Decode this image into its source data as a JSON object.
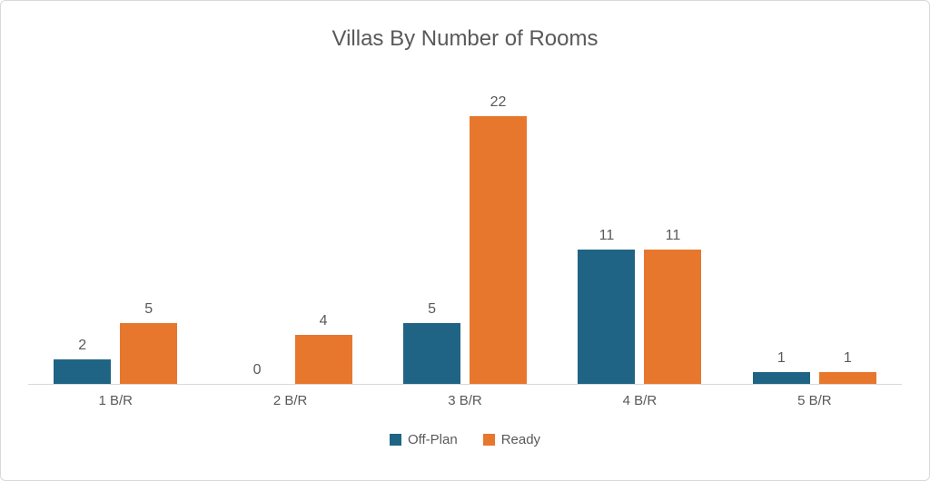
{
  "chart_data": {
    "type": "bar",
    "title": "Villas By Number of Rooms",
    "categories": [
      "1 B/R",
      "2 B/R",
      "3 B/R",
      "4 B/R",
      "5 B/R"
    ],
    "series": [
      {
        "name": "Off-Plan",
        "color": "#1f6484",
        "values": [
          2,
          0,
          5,
          11,
          1
        ]
      },
      {
        "name": "Ready",
        "color": "#e8772e",
        "values": [
          5,
          4,
          22,
          11,
          1
        ]
      }
    ],
    "xlabel": "",
    "ylabel": "",
    "ylim": [
      0,
      22
    ],
    "grid": false,
    "data_labels": true,
    "legend_position": "bottom",
    "label_color": "#595959",
    "axis_line_color": "#d9d9d9",
    "background_color": "#ffffff"
  }
}
